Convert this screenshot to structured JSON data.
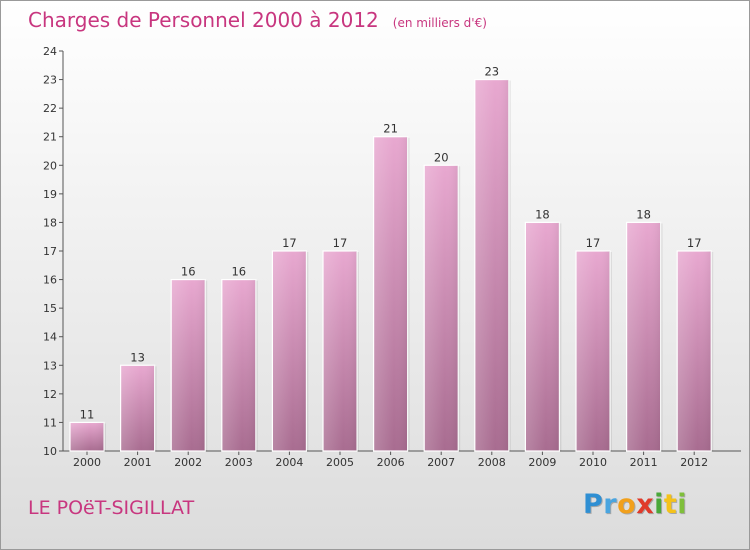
{
  "title": "Charges de Personnel 2000 à 2012",
  "unit": "(en milliers d'€)",
  "commune": "LE POëT-SIGILLAT",
  "logo": "Proxiti",
  "colors": {
    "bar_top": "#e8a8d0",
    "bar_bottom": "#a86c90",
    "text_accent": "#c8367f"
  },
  "chart_data": {
    "type": "bar",
    "categories": [
      "2000",
      "2001",
      "2002",
      "2003",
      "2004",
      "2005",
      "2006",
      "2007",
      "2008",
      "2009",
      "2010",
      "2011",
      "2012"
    ],
    "values": [
      11,
      13,
      16,
      16,
      17,
      17,
      21,
      20,
      23,
      18,
      17,
      18,
      17
    ],
    "ylim": [
      10,
      24
    ],
    "yticks": [
      10,
      11,
      12,
      13,
      14,
      15,
      16,
      17,
      18,
      19,
      20,
      21,
      22,
      23,
      24
    ],
    "grid": false
  }
}
